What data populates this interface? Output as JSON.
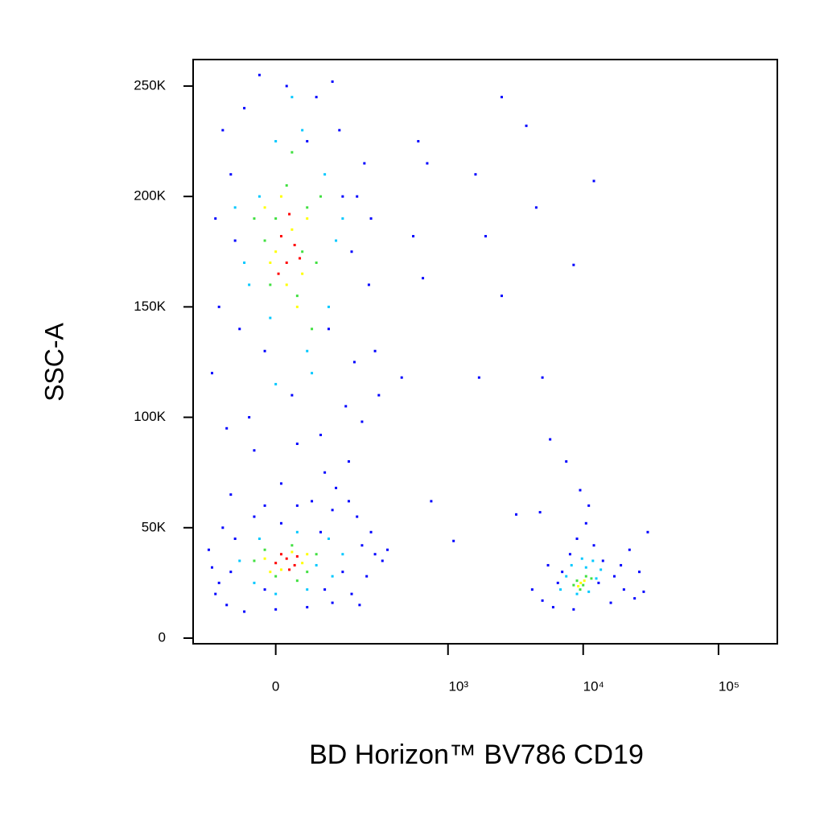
{
  "chart_data": {
    "type": "scatter",
    "x_label": "BD Horizon™ BV786 CD19",
    "y_label": "SSC-A",
    "xscale": "biexponential",
    "xlim": [
      -205,
      272000
    ],
    "ylim": [
      -2550,
      262000
    ],
    "xticks": [
      0,
      {
        "value": 1000,
        "label": "10³"
      },
      {
        "value": 10000,
        "label": "10⁴"
      },
      {
        "value": 100000,
        "label": "10⁵"
      }
    ],
    "yticks": [
      0,
      {
        "value": 50000,
        "label": "50K"
      },
      {
        "value": 100000,
        "label": "100K"
      },
      {
        "value": 150000,
        "label": "150K"
      },
      {
        "value": 200000,
        "label": "200K"
      },
      {
        "value": 250000,
        "label": "250K"
      }
    ],
    "series": [
      {
        "color": "#0000ff",
        "x": [
          -120,
          -90,
          -60,
          -30,
          20,
          80,
          140,
          200,
          250,
          280,
          -140,
          -100,
          -50,
          30,
          90,
          160,
          220,
          -80,
          180,
          230,
          -110,
          120,
          60,
          -20,
          110,
          190,
          -70,
          260,
          150,
          -130,
          40,
          -40,
          100,
          10,
          -90,
          170,
          70,
          -20,
          130,
          300,
          -150,
          -120,
          -100,
          -60,
          0,
          60,
          120,
          180,
          240,
          280,
          260,
          200,
          120,
          40,
          -40,
          -110,
          -140,
          320,
          220,
          150,
          -80,
          90,
          170,
          -20,
          100,
          -90,
          350,
          10,
          -130,
          210,
          4200,
          5000,
          6000,
          7000,
          8000,
          9000,
          10500,
          12000,
          14000,
          17000,
          20000,
          24000,
          28000,
          30000,
          22000,
          11000,
          9500,
          7500,
          16000,
          6500,
          5500,
          13000,
          19000,
          26000,
          8500,
          600,
          2500,
          3800,
          700,
          1600,
          12000,
          4500,
          550,
          1900,
          8500,
          650,
          2500,
          1700,
          5000,
          450,
          5700,
          750,
          4800,
          3200,
          1100
        ],
        "values": [
          150000,
          210000,
          240000,
          255000,
          250000,
          245000,
          230000,
          200000,
          160000,
          130000,
          120000,
          95000,
          100000,
          110000,
          92000,
          105000,
          98000,
          180000,
          175000,
          215000,
          230000,
          252000,
          225000,
          130000,
          140000,
          125000,
          140000,
          190000,
          200000,
          190000,
          88000,
          85000,
          75000,
          70000,
          65000,
          80000,
          62000,
          60000,
          68000,
          110000,
          40000,
          25000,
          15000,
          12000,
          13000,
          14000,
          16000,
          20000,
          28000,
          38000,
          48000,
          55000,
          58000,
          60000,
          55000,
          50000,
          32000,
          35000,
          42000,
          30000,
          45000,
          48000,
          62000,
          22000,
          22000,
          30000,
          40000,
          52000,
          20000,
          15000,
          22000,
          17000,
          14000,
          30000,
          38000,
          45000,
          52000,
          42000,
          35000,
          28000,
          22000,
          18000,
          21000,
          48000,
          40000,
          60000,
          67000,
          80000,
          16000,
          25000,
          33000,
          25000,
          33000,
          30000,
          13000,
          225000,
          245000,
          232000,
          215000,
          210000,
          207000,
          195000,
          182000,
          182000,
          169000,
          163000,
          155000,
          118000,
          118000,
          118000,
          90000,
          62000,
          57000,
          56000,
          44000
        ]
      },
      {
        "color": "#00c8ff",
        "x": [
          -60,
          -30,
          0,
          50,
          100,
          130,
          110,
          60,
          -10,
          -50,
          30,
          -80,
          150,
          70,
          0,
          -70,
          -40,
          0,
          60,
          120,
          150,
          110,
          40,
          -30,
          80,
          7500,
          9000,
          10500,
          12500,
          11000,
          8200,
          13500,
          9800,
          6800,
          11800
        ],
        "values": [
          170000,
          200000,
          225000,
          230000,
          210000,
          180000,
          150000,
          130000,
          145000,
          160000,
          245000,
          195000,
          190000,
          120000,
          115000,
          35000,
          25000,
          20000,
          22000,
          28000,
          38000,
          45000,
          48000,
          45000,
          33000,
          28000,
          20000,
          32000,
          27000,
          21000,
          33000,
          31000,
          36000,
          22000,
          35000
        ]
      },
      {
        "color": "#40e040",
        "x": [
          -20,
          20,
          60,
          80,
          40,
          -10,
          30,
          70,
          0,
          50,
          -40,
          90,
          -40,
          0,
          40,
          80,
          30,
          -20,
          60,
          9000,
          10000,
          11500,
          8500,
          10500,
          9500
        ],
        "values": [
          180000,
          205000,
          195000,
          170000,
          155000,
          160000,
          220000,
          140000,
          190000,
          175000,
          190000,
          200000,
          35000,
          28000,
          26000,
          38000,
          42000,
          40000,
          30000,
          26000,
          24000,
          27000,
          24000,
          28000,
          22000
        ]
      },
      {
        "color": "#ffff00",
        "x": [
          0,
          30,
          50,
          10,
          -10,
          40,
          60,
          20,
          -20,
          -20,
          10,
          50,
          30,
          -10,
          60,
          9600,
          10200,
          9200
        ],
        "values": [
          175000,
          185000,
          165000,
          200000,
          170000,
          150000,
          190000,
          160000,
          195000,
          36000,
          31000,
          34000,
          39000,
          30000,
          38000,
          25000,
          26000,
          23500
        ]
      },
      {
        "color": "#ff0000",
        "x": [
          20,
          35,
          10,
          45,
          25,
          5,
          0,
          20,
          35,
          10,
          40,
          25
        ],
        "values": [
          170000,
          178000,
          182000,
          172000,
          192000,
          165000,
          34000,
          36000,
          33000,
          38000,
          37000,
          31000
        ]
      }
    ]
  }
}
